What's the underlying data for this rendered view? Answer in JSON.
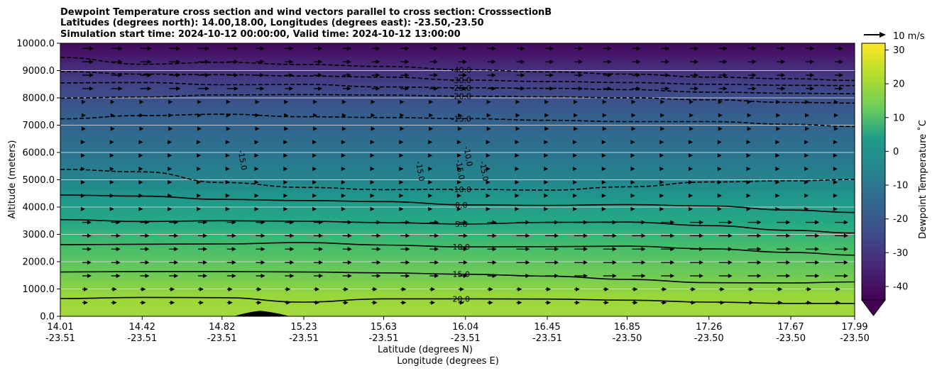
{
  "chart_data": {
    "type": "contour",
    "title_lines": [
      "Dewpoint Temperature cross section and wind vectors parallel to cross section: CrosssectionB",
      "Latitudes (degrees north): 14.00,18.00, Longitudes (degrees east): -23.50,-23.50",
      "Simulation start time: 2024-10-12 00:00:00, Valid time: 2024-10-12 13:00:00"
    ],
    "ylabel": "Altitude (meters)",
    "xlabel_lines": [
      "Latitude (degrees N)",
      "Longitude (degrees E)"
    ],
    "ylim": [
      0,
      10000
    ],
    "y_ticks": [
      "0.0",
      "1000.0",
      "2000.0",
      "3000.0",
      "4000.0",
      "5000.0",
      "6000.0",
      "7000.0",
      "8000.0",
      "9000.0",
      "10000.0"
    ],
    "x_range_lat": [
      14.01,
      17.99
    ],
    "x_ticks": [
      {
        "lat": "14.01",
        "lon": "-23.51"
      },
      {
        "lat": "14.42",
        "lon": "-23.51"
      },
      {
        "lat": "14.82",
        "lon": "-23.51"
      },
      {
        "lat": "15.23",
        "lon": "-23.51"
      },
      {
        "lat": "15.63",
        "lon": "-23.51"
      },
      {
        "lat": "16.04",
        "lon": "-23.51"
      },
      {
        "lat": "16.45",
        "lon": "-23.51"
      },
      {
        "lat": "16.85",
        "lon": "-23.50"
      },
      {
        "lat": "17.26",
        "lon": "-23.50"
      },
      {
        "lat": "17.67",
        "lon": "-23.50"
      },
      {
        "lat": "17.99",
        "lon": "-23.50"
      }
    ],
    "grid": "horizontal",
    "colorbar": {
      "label": "Dewpoint Temperature $^\\circ$C",
      "label_text": "Dewpoint Temperature ˚C",
      "range": [
        -44,
        32
      ],
      "ticks": [
        "-40",
        "-30",
        "-20",
        "-10",
        "0",
        "10",
        "20",
        "30"
      ],
      "extend": "min",
      "colormap": "viridis"
    },
    "wind_key": {
      "label": "10 m/s",
      "speed": 10
    },
    "contours": [
      {
        "level": "20.0",
        "style": "solid",
        "heights_m": [
          650,
          690,
          680,
          520,
          640,
          640,
          630,
          590,
          520,
          470,
          470
        ]
      },
      {
        "level": "15.0",
        "style": "solid",
        "heights_m": [
          1620,
          1640,
          1640,
          1620,
          1590,
          1540,
          1470,
          1350,
          1230,
          1220,
          1260
        ]
      },
      {
        "level": "10.0",
        "style": "solid",
        "heights_m": [
          2620,
          2640,
          2650,
          2700,
          2610,
          2540,
          2550,
          2570,
          2470,
          2340,
          2240
        ]
      },
      {
        "level": "5.0",
        "style": "solid",
        "heights_m": [
          3540,
          3470,
          3500,
          3480,
          3430,
          3380,
          3440,
          3450,
          3320,
          3150,
          3050
        ]
      },
      {
        "level": "0.0",
        "style": "solid",
        "heights_m": [
          4440,
          4400,
          4280,
          4240,
          4200,
          4080,
          4060,
          4090,
          4040,
          3890,
          3800
        ]
      },
      {
        "level": "-10.0",
        "style": "dashed",
        "heights_m": [
          5380,
          5290,
          4900,
          4720,
          4640,
          4650,
          4620,
          4740,
          4920,
          4960,
          5010
        ]
      },
      {
        "level": "-15.0",
        "style": "dashed",
        "heights_m": [
          7230,
          7350,
          7400,
          7310,
          7280,
          7240,
          7180,
          7130,
          7130,
          7030,
          6950
        ]
      },
      {
        "level": "-20.0",
        "style": "dashed",
        "heights_m": [
          7990,
          8030,
          8110,
          8120,
          8100,
          8060,
          8040,
          8000,
          7930,
          7830,
          7810
        ]
      },
      {
        "level": "-25.0",
        "style": "dashed",
        "heights_m": [
          8550,
          8560,
          8480,
          8490,
          8400,
          8370,
          8350,
          8300,
          8210,
          8170,
          8150
        ]
      },
      {
        "level": "-30.0",
        "style": "dashed",
        "heights_m": [
          8960,
          8870,
          8850,
          8800,
          8760,
          8650,
          8600,
          8560,
          8500,
          8460,
          8450
        ]
      },
      {
        "level": "-40.0",
        "style": "dashed",
        "heights_m": [
          9480,
          9230,
          9300,
          9220,
          9150,
          9030,
          8950,
          8870,
          8760,
          8700,
          8640
        ]
      }
    ],
    "extra_contour_labels": [
      {
        "level": "-15.0",
        "lat": 14.91,
        "alt": 5700
      },
      {
        "level": "-15.0",
        "lat": 15.8,
        "alt": 5300
      },
      {
        "level": "-15.0",
        "lat": 16.0,
        "alt": 5350
      },
      {
        "level": "-15.0",
        "lat": 16.12,
        "alt": 5300
      },
      {
        "level": "-10.0",
        "lat": 16.04,
        "alt": 5840
      }
    ],
    "terrain": {
      "peak_lat": 15.01,
      "start_lat": 14.88,
      "end_lat": 15.16,
      "peak_height_m": 200
    }
  }
}
